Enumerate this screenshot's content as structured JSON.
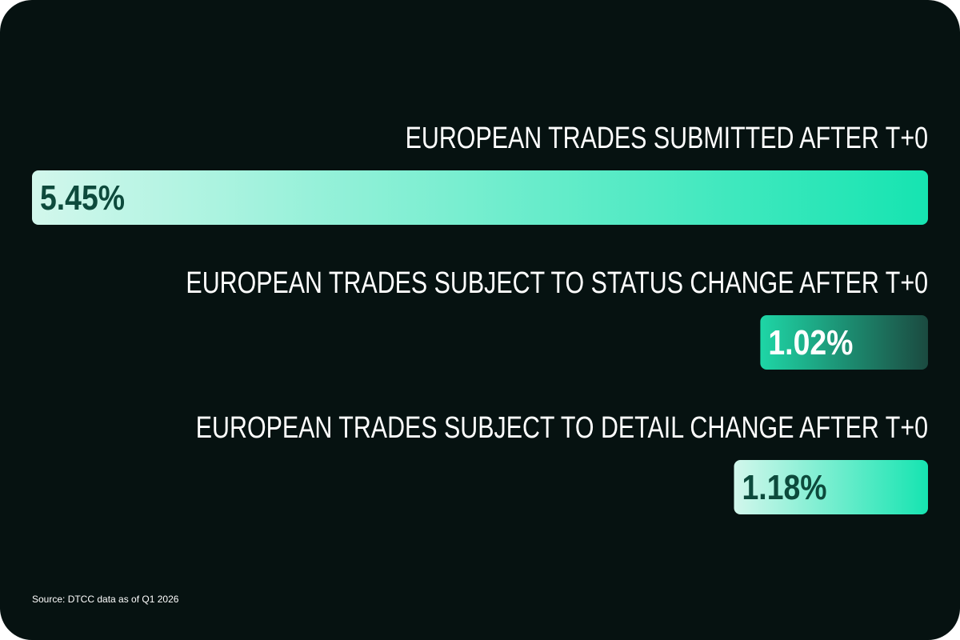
{
  "chart_data": {
    "type": "bar",
    "orientation": "horizontal",
    "align": "right",
    "categories": [
      "EUROPEAN TRADES SUBMITTED AFTER T+0",
      "EUROPEAN TRADES SUBJECT TO STATUS CHANGE AFTER T+0",
      "EUROPEAN TRADES SUBJECT TO DETAIL CHANGE AFTER T+0"
    ],
    "values": [
      5.45,
      1.02,
      1.18
    ],
    "value_labels": [
      "5.45%",
      "1.02%",
      "1.18%"
    ],
    "colors": [
      [
        "#d2f7ec",
        "#16e4b1"
      ],
      [
        "#1ed6a6",
        "#1b4a40"
      ],
      [
        "#d2f7ec",
        "#16e4b1"
      ]
    ],
    "source": "Source: DTCC data as of Q1 2026"
  }
}
